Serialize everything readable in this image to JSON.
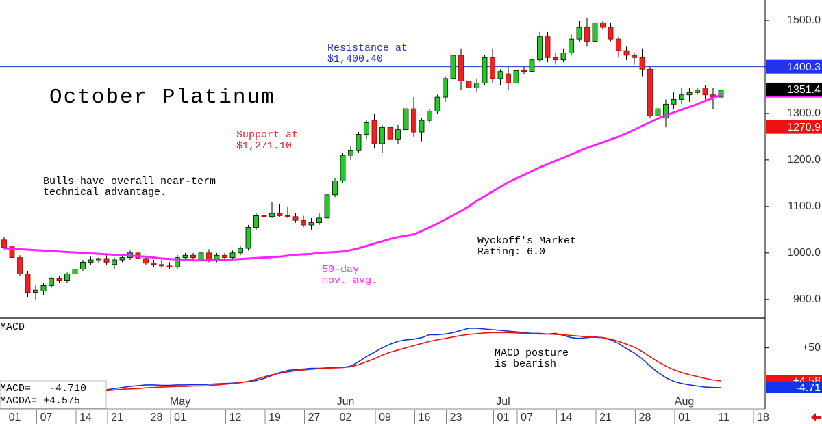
{
  "chart_data": {
    "type": "candlestick",
    "title": "October Platinum",
    "note_bulls": [
      "Bulls have overall near-term",
      "technical advantage."
    ],
    "note_rating": [
      "Wyckoff's Market",
      "Rating: 6.0"
    ],
    "categories": [
      null,
      "01",
      null,
      null,
      null,
      "07",
      null,
      null,
      null,
      null,
      "14",
      null,
      null,
      null,
      "21",
      null,
      null,
      null,
      null,
      "28",
      null,
      null,
      "01",
      null,
      null,
      null,
      null,
      null,
      null,
      "12",
      null,
      null,
      null,
      null,
      "19",
      null,
      null,
      null,
      null,
      "27",
      null,
      null,
      null,
      "02",
      null,
      null,
      null,
      null,
      "09",
      null,
      null,
      null,
      null,
      "16",
      null,
      null,
      null,
      "23",
      null,
      null,
      null,
      null,
      null,
      "01",
      null,
      null,
      "07",
      null,
      null,
      null,
      null,
      "14",
      null,
      null,
      null,
      null,
      "21",
      null,
      null,
      null,
      null,
      "28",
      null,
      null,
      null,
      null,
      "01",
      null,
      null,
      null,
      null,
      "11",
      null,
      null,
      null,
      null,
      "18"
    ],
    "months": [
      null,
      null,
      null,
      null,
      null,
      null,
      null,
      null,
      null,
      null,
      null,
      null,
      null,
      null,
      null,
      null,
      null,
      null,
      null,
      null,
      null,
      null,
      "May",
      null,
      null,
      null,
      null,
      null,
      null,
      null,
      null,
      null,
      null,
      null,
      null,
      null,
      null,
      null,
      null,
      null,
      null,
      null,
      null,
      "Jun",
      null,
      null,
      null,
      null,
      null,
      null,
      null,
      null,
      null,
      null,
      null,
      null,
      null,
      null,
      null,
      null,
      null,
      null,
      null,
      "Jul",
      null,
      null,
      null,
      null,
      null,
      null,
      null,
      null,
      null,
      null,
      null,
      null,
      null,
      null,
      null,
      null,
      null,
      null,
      null,
      null,
      null,
      null,
      "Aug",
      null,
      null,
      null,
      null,
      null,
      null,
      null,
      null,
      null,
      null
    ],
    "ohlc": [
      [
        1028,
        1035,
        1008,
        1012
      ],
      [
        1015,
        1020,
        985,
        990
      ],
      [
        990,
        995,
        950,
        955
      ],
      [
        955,
        960,
        905,
        915
      ],
      [
        915,
        930,
        900,
        920
      ],
      [
        918,
        935,
        910,
        930
      ],
      [
        930,
        948,
        925,
        945
      ],
      [
        945,
        950,
        935,
        940
      ],
      [
        940,
        958,
        935,
        955
      ],
      [
        955,
        970,
        950,
        965
      ],
      [
        965,
        985,
        960,
        980
      ],
      [
        980,
        992,
        975,
        985
      ],
      [
        985,
        990,
        978,
        988
      ],
      [
        988,
        995,
        975,
        980
      ],
      [
        975,
        990,
        965,
        985
      ],
      [
        985,
        995,
        980,
        990
      ],
      [
        990,
        1005,
        985,
        1000
      ],
      [
        1000,
        1005,
        985,
        988
      ],
      [
        988,
        992,
        975,
        978
      ],
      [
        978,
        985,
        970,
        975
      ],
      [
        975,
        985,
        968,
        972
      ],
      [
        972,
        980,
        965,
        970
      ],
      [
        970,
        995,
        965,
        990
      ],
      [
        990,
        1000,
        985,
        995
      ],
      [
        995,
        1000,
        985,
        990
      ],
      [
        985,
        1005,
        980,
        1000
      ],
      [
        1000,
        1008,
        980,
        985
      ],
      [
        985,
        1000,
        980,
        995
      ],
      [
        995,
        1000,
        985,
        990
      ],
      [
        990,
        1005,
        985,
        1000
      ],
      [
        1000,
        1015,
        995,
        1010
      ],
      [
        1010,
        1060,
        1005,
        1055
      ],
      [
        1055,
        1085,
        1050,
        1080
      ],
      [
        1080,
        1090,
        1072,
        1078
      ],
      [
        1078,
        1110,
        1075,
        1085
      ],
      [
        1085,
        1105,
        1078,
        1080
      ],
      [
        1080,
        1100,
        1075,
        1078
      ],
      [
        1078,
        1085,
        1065,
        1070
      ],
      [
        1070,
        1080,
        1055,
        1060
      ],
      [
        1060,
        1075,
        1050,
        1065
      ],
      [
        1065,
        1085,
        1060,
        1075
      ],
      [
        1075,
        1130,
        1070,
        1125
      ],
      [
        1125,
        1160,
        1120,
        1155
      ],
      [
        1155,
        1215,
        1150,
        1210
      ],
      [
        1210,
        1230,
        1200,
        1220
      ],
      [
        1220,
        1260,
        1215,
        1255
      ],
      [
        1255,
        1285,
        1245,
        1280
      ],
      [
        1285,
        1300,
        1225,
        1235
      ],
      [
        1235,
        1275,
        1215,
        1270
      ],
      [
        1270,
        1280,
        1230,
        1245
      ],
      [
        1245,
        1275,
        1235,
        1265
      ],
      [
        1265,
        1320,
        1255,
        1310
      ],
      [
        1310,
        1335,
        1250,
        1260
      ],
      [
        1260,
        1290,
        1240,
        1285
      ],
      [
        1285,
        1310,
        1280,
        1305
      ],
      [
        1305,
        1340,
        1300,
        1335
      ],
      [
        1335,
        1380,
        1325,
        1375
      ],
      [
        1375,
        1440,
        1360,
        1425
      ],
      [
        1425,
        1440,
        1350,
        1370
      ],
      [
        1370,
        1385,
        1345,
        1355
      ],
      [
        1355,
        1375,
        1345,
        1365
      ],
      [
        1365,
        1425,
        1360,
        1420
      ],
      [
        1420,
        1440,
        1365,
        1375
      ],
      [
        1375,
        1395,
        1360,
        1390
      ],
      [
        1385,
        1400,
        1350,
        1365
      ],
      [
        1365,
        1395,
        1360,
        1392
      ],
      [
        1392,
        1400,
        1385,
        1390
      ],
      [
        1390,
        1420,
        1380,
        1415
      ],
      [
        1415,
        1475,
        1410,
        1465
      ],
      [
        1465,
        1475,
        1410,
        1420
      ],
      [
        1420,
        1430,
        1405,
        1415
      ],
      [
        1415,
        1440,
        1410,
        1430
      ],
      [
        1430,
        1470,
        1425,
        1460
      ],
      [
        1460,
        1500,
        1455,
        1485
      ],
      [
        1485,
        1505,
        1445,
        1455
      ],
      [
        1455,
        1505,
        1450,
        1495
      ],
      [
        1495,
        1500,
        1480,
        1485
      ],
      [
        1485,
        1495,
        1455,
        1460
      ],
      [
        1460,
        1465,
        1420,
        1435
      ],
      [
        1435,
        1445,
        1415,
        1425
      ],
      [
        1425,
        1430,
        1405,
        1420
      ],
      [
        1420,
        1440,
        1380,
        1395
      ],
      [
        1395,
        1400,
        1290,
        1295
      ],
      [
        1295,
        1320,
        1280,
        1310
      ],
      [
        1290,
        1330,
        1270,
        1320
      ],
      [
        1320,
        1345,
        1310,
        1330
      ],
      [
        1330,
        1355,
        1320,
        1340
      ],
      [
        1340,
        1355,
        1325,
        1345
      ],
      [
        1345,
        1355,
        1340,
        1350
      ],
      [
        1355,
        1360,
        1330,
        1340
      ],
      [
        1340,
        1355,
        1310,
        1335
      ],
      [
        1335,
        1355,
        1325,
        1350
      ],
      null,
      null,
      null,
      null,
      null
    ],
    "up_color": "#22cc22",
    "down_color": "#ee2222",
    "moving_average": {
      "color": "#ff22ff",
      "label": [
        "50-day",
        "mov. avg."
      ],
      "values": [
        1010,
        1009,
        1008,
        1007,
        1006,
        1005,
        1004,
        1003,
        1002,
        1001,
        1000,
        999,
        998,
        997,
        996,
        995,
        994,
        993,
        992,
        990,
        988,
        987,
        986,
        985,
        984,
        984,
        984,
        985,
        985,
        986,
        987,
        988,
        989,
        990,
        991,
        992,
        994,
        996,
        997,
        998,
        1000,
        1001,
        1002,
        1003,
        1006,
        1010,
        1015,
        1020,
        1025,
        1030,
        1034,
        1037,
        1040,
        1047,
        1055,
        1063,
        1072,
        1081,
        1090,
        1100,
        1112,
        1122,
        1132,
        1142,
        1152,
        1160,
        1168,
        1176,
        1184,
        1191,
        1198,
        1205,
        1212,
        1219,
        1226,
        1232,
        1238,
        1244,
        1250,
        1257,
        1265,
        1273,
        1281,
        1289,
        1296,
        1302,
        1308,
        1314,
        1320,
        1327,
        1333,
        1340,
        null,
        null,
        null,
        null,
        null
      ]
    },
    "ylim": [
      860,
      1544
    ],
    "yticks": [
      {
        "value": 900,
        "label": "900.0"
      },
      {
        "value": 1000,
        "label": "1000.0"
      },
      {
        "value": 1100,
        "label": "1100.0"
      },
      {
        "value": 1200,
        "label": "1200.0"
      },
      {
        "value": 1300,
        "label": "1300.0"
      },
      {
        "value": 1400,
        "label": "1400.0"
      },
      {
        "value": 1500,
        "label": "1500.0"
      }
    ],
    "levels": [
      {
        "value": 1400.4,
        "label": [
          "Resistance at",
          "$1,400.40"
        ],
        "color": "#2233cc"
      },
      {
        "value": 1271.1,
        "label": [
          "Support at",
          "$1,271.10"
        ],
        "color": "#ee2222"
      }
    ],
    "price_tags": [
      {
        "value": 1400.3,
        "color": "#2233ee"
      },
      {
        "value": 1351.4,
        "color": "#000000"
      },
      {
        "value": 1270.9,
        "color": "#ee1111"
      }
    ],
    "macd": {
      "title": "MACD",
      "note": [
        "MACD posture",
        "is bearish"
      ],
      "readout": [
        "MACD=   -4.710",
        "MACDA= +4.575"
      ],
      "ylim": [
        -33,
        91
      ],
      "yticks": [
        {
          "value": 50,
          "label": "+50"
        }
      ],
      "series": [
        {
          "color": "#1133dd",
          "values": [
            null,
            null,
            null,
            null,
            null,
            null,
            null,
            null,
            null,
            null,
            null,
            null,
            null,
            -7.6,
            -6,
            -4.5,
            -3,
            -2,
            -1,
            -1,
            -1.5,
            -1.5,
            -1,
            -1,
            -0.5,
            -0.5,
            0,
            0.5,
            1,
            1.5,
            2.5,
            3.5,
            5,
            8,
            12,
            16,
            19,
            20,
            21,
            22,
            22,
            22.5,
            23,
            23,
            25,
            31,
            38,
            44,
            50,
            55,
            59,
            61,
            62,
            64,
            68,
            68,
            69,
            71,
            74,
            77,
            77,
            76,
            75,
            74,
            73,
            72,
            71,
            70,
            70,
            69,
            70,
            67,
            64,
            63,
            64,
            65,
            64,
            61,
            56,
            49,
            43,
            35,
            25,
            16,
            9,
            4,
            1,
            -1,
            -2.5,
            -4,
            -4.5,
            -4.71,
            null,
            null,
            null,
            null,
            null
          ]
        },
        {
          "color": "#ee1111",
          "values": [
            null,
            null,
            null,
            null,
            null,
            null,
            null,
            null,
            null,
            null,
            null,
            null,
            null,
            -9,
            -8,
            -7,
            -6.5,
            -6,
            -5,
            -4.5,
            -4,
            -3.5,
            -3,
            -3,
            -2.5,
            -2.5,
            -2,
            -1,
            0,
            1,
            2,
            4,
            7,
            10,
            13,
            15,
            17,
            18.5,
            19.5,
            20.5,
            21.5,
            22,
            22.5,
            23,
            24,
            27,
            31,
            35,
            40,
            44,
            47,
            50,
            53,
            56,
            59,
            61,
            63,
            65,
            67,
            68.5,
            69.5,
            70.5,
            71,
            71,
            71,
            70.5,
            70,
            69.5,
            69,
            69,
            68.5,
            68,
            67,
            66,
            65,
            64.5,
            64,
            62,
            59,
            55,
            51,
            45,
            38,
            31,
            25,
            20,
            16,
            13,
            10.5,
            8,
            6,
            4.575,
            null,
            null,
            null,
            null,
            null
          ]
        }
      ],
      "tags": [
        {
          "value": 4.575,
          "label": "+4.58",
          "color": "#ee1111"
        },
        {
          "value": -4.71,
          "label": "-4.71",
          "color": "#1133ee"
        }
      ]
    }
  }
}
